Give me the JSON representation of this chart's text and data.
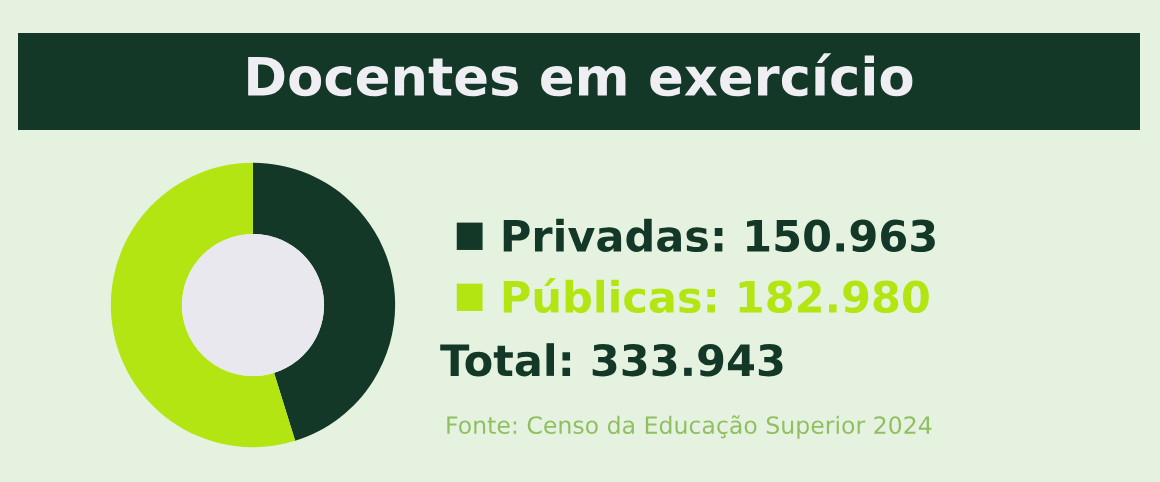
{
  "chart_data": {
    "type": "donut",
    "title": "Docentes em exercício",
    "categories": [
      "Privadas",
      "Públicas"
    ],
    "values": [
      150963,
      182980
    ],
    "value_labels": [
      "150.963",
      "182.980"
    ],
    "colors": [
      "#143828",
      "#b3e513"
    ],
    "legend": "right",
    "annotations": [
      "Total: 333.943",
      "Fonte: Censo da Educação Superior 2024"
    ]
  }
}
